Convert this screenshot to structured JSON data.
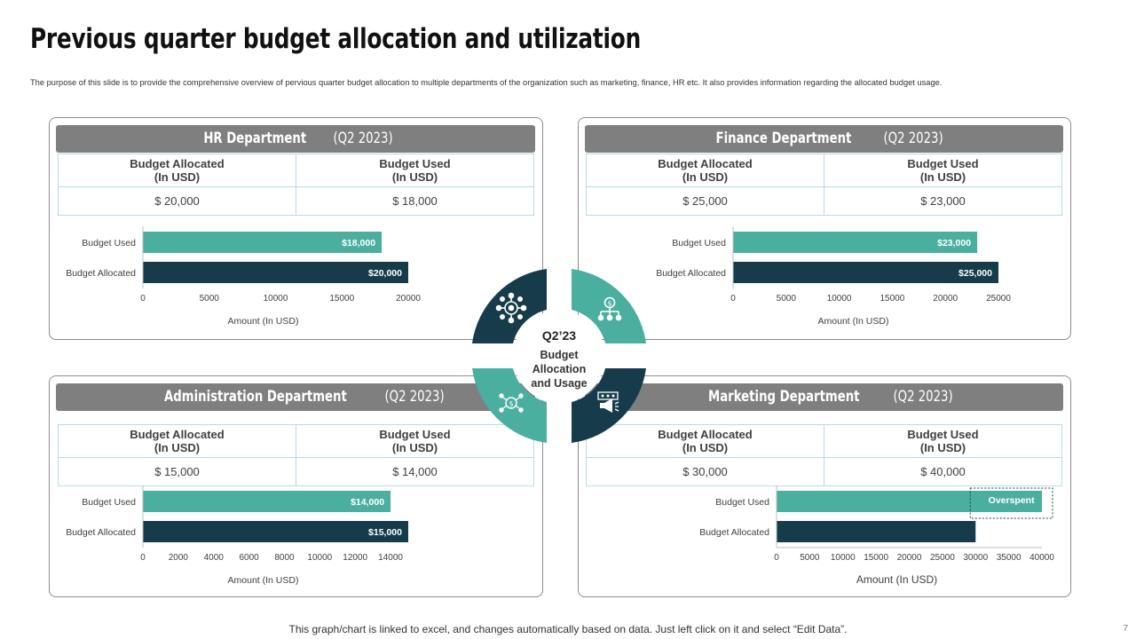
{
  "slide": {
    "title": "Previous quarter budget allocation and utilization",
    "subtitle": "The purpose of this slide is to provide the comprehensive overview of pervious quarter budget allocation to multiple  departments of the organization such as marketing,  finance, HR etc. It also provides information regarding the allocated budget usage.",
    "footer": "This graph/chart is linked to excel, and changes automatically based on data. Just left click on it and select “Edit Data”.",
    "page_number": "7"
  },
  "center": {
    "quarter": "Q2’23",
    "label_line1": "Budget",
    "label_line2": "Allocation",
    "label_line3": "and Usage",
    "icons": [
      "network-gear-icon",
      "money-hierarchy-icon",
      "team-money-icon",
      "megaphone-icon"
    ],
    "colors": {
      "teal": "#4baf9f",
      "dark": "#163c4b"
    }
  },
  "table_headers": {
    "allocated_line1": "Budget Allocated",
    "allocated_line2": "(In USD)",
    "used_line1": "Budget Used",
    "used_line2": "(In USD)"
  },
  "departments": [
    {
      "name": "HR Department",
      "period": "(Q2 2023)",
      "allocated_display": "$ 20,000",
      "used_display": "$ 18,000"
    },
    {
      "name": "Finance Department",
      "period": "(Q2 2023)",
      "allocated_display": "$ 25,000",
      "used_display": "$ 23,000"
    },
    {
      "name": "Administration Department",
      "period": "(Q2 2023)",
      "allocated_display": "$ 15,000",
      "used_display": "$ 14,000"
    },
    {
      "name": "Marketing Department",
      "period": "(Q2 2023)",
      "allocated_display": "$ 30,000",
      "used_display": "$ 40,000"
    }
  ],
  "chart_data": [
    {
      "type": "bar",
      "orientation": "horizontal",
      "categories": [
        "Budget Used",
        "Budget Allocated"
      ],
      "values": [
        18000,
        20000
      ],
      "data_labels": [
        "$18,000",
        "$20,000"
      ],
      "colors": [
        "#4baf9f",
        "#163c4b"
      ],
      "xlim": [
        0,
        20000
      ],
      "xticks": [
        0,
        5000,
        10000,
        15000,
        20000
      ],
      "xlabel": "Amount (In USD)",
      "show_axis_line": false
    },
    {
      "type": "bar",
      "orientation": "horizontal",
      "categories": [
        "Budget Used",
        "Budget Allocated"
      ],
      "values": [
        23000,
        25000
      ],
      "data_labels": [
        "$23,000",
        "$25,000"
      ],
      "colors": [
        "#4baf9f",
        "#163c4b"
      ],
      "xlim": [
        0,
        25000
      ],
      "xticks": [
        0,
        5000,
        10000,
        15000,
        20000,
        25000
      ],
      "xlabel": "Amount (In USD)",
      "show_axis_line": false
    },
    {
      "type": "bar",
      "orientation": "horizontal",
      "categories": [
        "Budget Used",
        "Budget Allocated"
      ],
      "values": [
        14000,
        15000
      ],
      "data_labels": [
        "$14,000",
        "$15,000"
      ],
      "colors": [
        "#4baf9f",
        "#163c4b"
      ],
      "xlim": [
        0,
        15000
      ],
      "xticks": [
        0,
        2000,
        4000,
        6000,
        8000,
        10000,
        12000,
        14000
      ],
      "xlabel": "Amount (In USD)",
      "show_axis_line": false
    },
    {
      "type": "bar",
      "orientation": "horizontal",
      "categories": [
        "Budget Used",
        "Budget Allocated"
      ],
      "values": [
        40000,
        30000
      ],
      "data_labels": [
        "",
        ""
      ],
      "colors": [
        "#4baf9f",
        "#163c4b"
      ],
      "xlim": [
        0,
        40000
      ],
      "xticks": [
        0,
        5000,
        10000,
        15000,
        20000,
        25000,
        30000,
        35000,
        40000
      ],
      "xlabel": "Amount (In USD)",
      "show_axis_line": true,
      "annotation": {
        "text": "Overspent",
        "from": 30000,
        "to": 40000,
        "category": "Budget Used"
      }
    }
  ]
}
